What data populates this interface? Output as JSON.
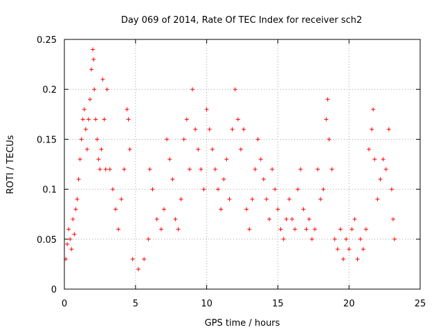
{
  "chart_data": {
    "type": "scatter",
    "title": "Day 069 of 2014, Rate Of TEC Index for receiver sch2",
    "xlabel": "GPS time / hours",
    "ylabel": "ROTI / TECUs",
    "xlim": [
      0,
      25
    ],
    "ylim": [
      0,
      0.25
    ],
    "x_ticks": [
      "0",
      "5",
      "10",
      "15",
      "20",
      "25"
    ],
    "y_ticks": [
      "0",
      "0.05",
      "0.1",
      "0.15",
      "0.2",
      "0.25"
    ],
    "grid": true,
    "legend": "none",
    "marker": "+",
    "color": "#ff0000",
    "series": [
      {
        "points": [
          [
            0.1,
            0.03
          ],
          [
            0.2,
            0.045
          ],
          [
            0.3,
            0.06
          ],
          [
            0.4,
            0.05
          ],
          [
            0.5,
            0.04
          ],
          [
            0.6,
            0.07
          ],
          [
            0.7,
            0.055
          ],
          [
            0.8,
            0.08
          ],
          [
            0.9,
            0.09
          ],
          [
            1.0,
            0.11
          ],
          [
            1.1,
            0.13
          ],
          [
            1.2,
            0.15
          ],
          [
            1.3,
            0.17
          ],
          [
            1.4,
            0.18
          ],
          [
            1.5,
            0.16
          ],
          [
            1.6,
            0.14
          ],
          [
            1.7,
            0.17
          ],
          [
            1.8,
            0.19
          ],
          [
            1.9,
            0.22
          ],
          [
            2.0,
            0.24
          ],
          [
            2.05,
            0.23
          ],
          [
            2.1,
            0.2
          ],
          [
            2.2,
            0.17
          ],
          [
            2.3,
            0.15
          ],
          [
            2.4,
            0.13
          ],
          [
            2.5,
            0.12
          ],
          [
            2.6,
            0.14
          ],
          [
            2.7,
            0.21
          ],
          [
            2.8,
            0.17
          ],
          [
            2.9,
            0.12
          ],
          [
            3.0,
            0.2
          ],
          [
            3.2,
            0.12
          ],
          [
            3.4,
            0.1
          ],
          [
            3.6,
            0.08
          ],
          [
            3.8,
            0.06
          ],
          [
            4.0,
            0.09
          ],
          [
            4.2,
            0.12
          ],
          [
            4.4,
            0.18
          ],
          [
            4.5,
            0.17
          ],
          [
            4.6,
            0.14
          ],
          [
            4.8,
            0.03
          ],
          [
            5.2,
            0.02
          ],
          [
            5.6,
            0.03
          ],
          [
            5.9,
            0.05
          ],
          [
            6.0,
            0.12
          ],
          [
            6.2,
            0.1
          ],
          [
            6.5,
            0.07
          ],
          [
            6.8,
            0.06
          ],
          [
            7.0,
            0.08
          ],
          [
            7.2,
            0.15
          ],
          [
            7.4,
            0.13
          ],
          [
            7.6,
            0.11
          ],
          [
            7.8,
            0.07
          ],
          [
            8.0,
            0.06
          ],
          [
            8.2,
            0.09
          ],
          [
            8.4,
            0.15
          ],
          [
            8.6,
            0.17
          ],
          [
            8.8,
            0.12
          ],
          [
            9.0,
            0.2
          ],
          [
            9.2,
            0.16
          ],
          [
            9.4,
            0.14
          ],
          [
            9.6,
            0.12
          ],
          [
            9.8,
            0.1
          ],
          [
            10.0,
            0.18
          ],
          [
            10.2,
            0.16
          ],
          [
            10.4,
            0.14
          ],
          [
            10.6,
            0.12
          ],
          [
            10.8,
            0.1
          ],
          [
            11.0,
            0.08
          ],
          [
            11.2,
            0.11
          ],
          [
            11.4,
            0.13
          ],
          [
            11.6,
            0.09
          ],
          [
            11.8,
            0.16
          ],
          [
            12.0,
            0.2
          ],
          [
            12.2,
            0.17
          ],
          [
            12.4,
            0.14
          ],
          [
            12.6,
            0.16
          ],
          [
            12.8,
            0.08
          ],
          [
            13.0,
            0.06
          ],
          [
            13.2,
            0.09
          ],
          [
            13.4,
            0.12
          ],
          [
            13.6,
            0.15
          ],
          [
            13.8,
            0.13
          ],
          [
            14.0,
            0.11
          ],
          [
            14.2,
            0.09
          ],
          [
            14.4,
            0.07
          ],
          [
            14.6,
            0.12
          ],
          [
            14.8,
            0.1
          ],
          [
            15.0,
            0.08
          ],
          [
            15.2,
            0.06
          ],
          [
            15.4,
            0.05
          ],
          [
            15.6,
            0.07
          ],
          [
            15.8,
            0.09
          ],
          [
            16.0,
            0.07
          ],
          [
            16.2,
            0.06
          ],
          [
            16.4,
            0.1
          ],
          [
            16.6,
            0.12
          ],
          [
            16.8,
            0.08
          ],
          [
            17.0,
            0.06
          ],
          [
            17.2,
            0.07
          ],
          [
            17.4,
            0.05
          ],
          [
            17.6,
            0.06
          ],
          [
            17.8,
            0.12
          ],
          [
            18.0,
            0.09
          ],
          [
            18.2,
            0.1
          ],
          [
            18.4,
            0.17
          ],
          [
            18.5,
            0.19
          ],
          [
            18.6,
            0.15
          ],
          [
            18.8,
            0.12
          ],
          [
            19.0,
            0.05
          ],
          [
            19.2,
            0.04
          ],
          [
            19.4,
            0.06
          ],
          [
            19.6,
            0.03
          ],
          [
            19.8,
            0.05
          ],
          [
            20.0,
            0.04
          ],
          [
            20.2,
            0.06
          ],
          [
            20.4,
            0.07
          ],
          [
            20.6,
            0.03
          ],
          [
            20.8,
            0.05
          ],
          [
            21.0,
            0.04
          ],
          [
            21.2,
            0.06
          ],
          [
            21.4,
            0.14
          ],
          [
            21.6,
            0.16
          ],
          [
            21.7,
            0.18
          ],
          [
            21.8,
            0.13
          ],
          [
            22.0,
            0.09
          ],
          [
            22.2,
            0.11
          ],
          [
            22.4,
            0.13
          ],
          [
            22.6,
            0.12
          ],
          [
            22.8,
            0.16
          ],
          [
            23.0,
            0.1
          ],
          [
            23.1,
            0.07
          ],
          [
            23.2,
            0.05
          ]
        ]
      }
    ]
  }
}
